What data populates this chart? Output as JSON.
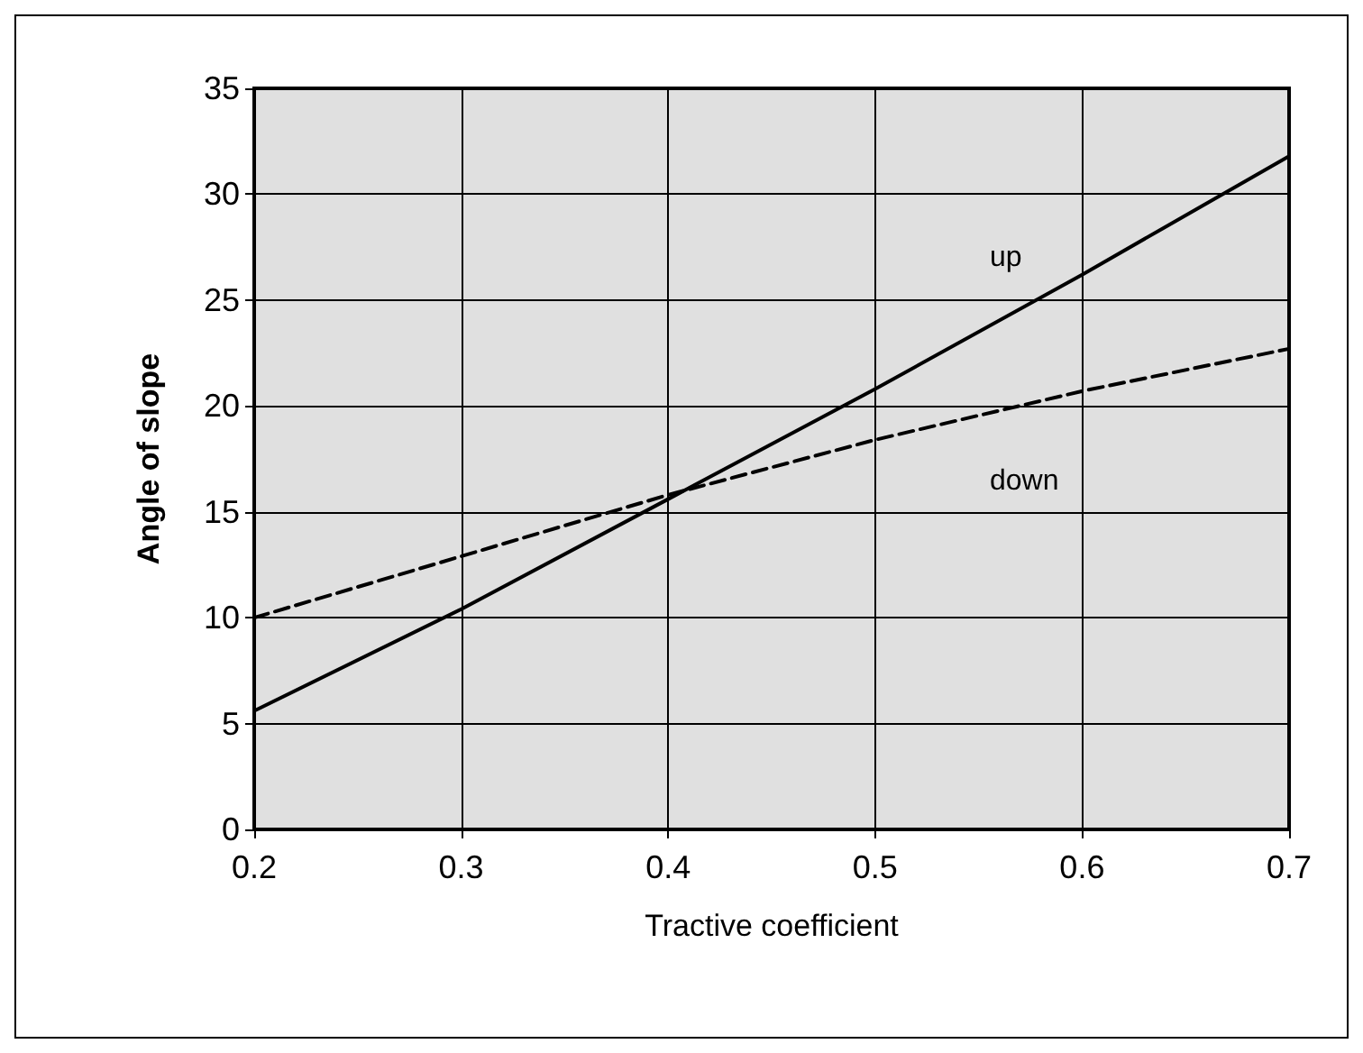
{
  "chart_data": {
    "type": "line",
    "xlabel": "Tractive coefficient",
    "ylabel": "Angle of slope",
    "xlim": [
      0.2,
      0.7
    ],
    "xticks": [
      0.2,
      0.3,
      0.4,
      0.5,
      0.6,
      0.7
    ],
    "ylim": [
      0,
      35
    ],
    "yticks": [
      0,
      5,
      10,
      15,
      20,
      25,
      30,
      35
    ],
    "grid": true,
    "marker": "none",
    "series": [
      {
        "color": "#000000",
        "line_style": "solid",
        "x": [
          0.2,
          0.3,
          0.4,
          0.5,
          0.6,
          0.7
        ],
        "values": [
          5.6,
          10.4,
          15.6,
          20.8,
          26.2,
          31.8
        ]
      },
      {
        "color": "#000000",
        "line_style": "dashed",
        "x": [
          0.2,
          0.3,
          0.4,
          0.5,
          0.6,
          0.7
        ],
        "values": [
          10,
          12.9,
          15.8,
          18.4,
          20.7,
          22.7
        ]
      }
    ],
    "annotations": [
      "up",
      "down"
    ]
  }
}
